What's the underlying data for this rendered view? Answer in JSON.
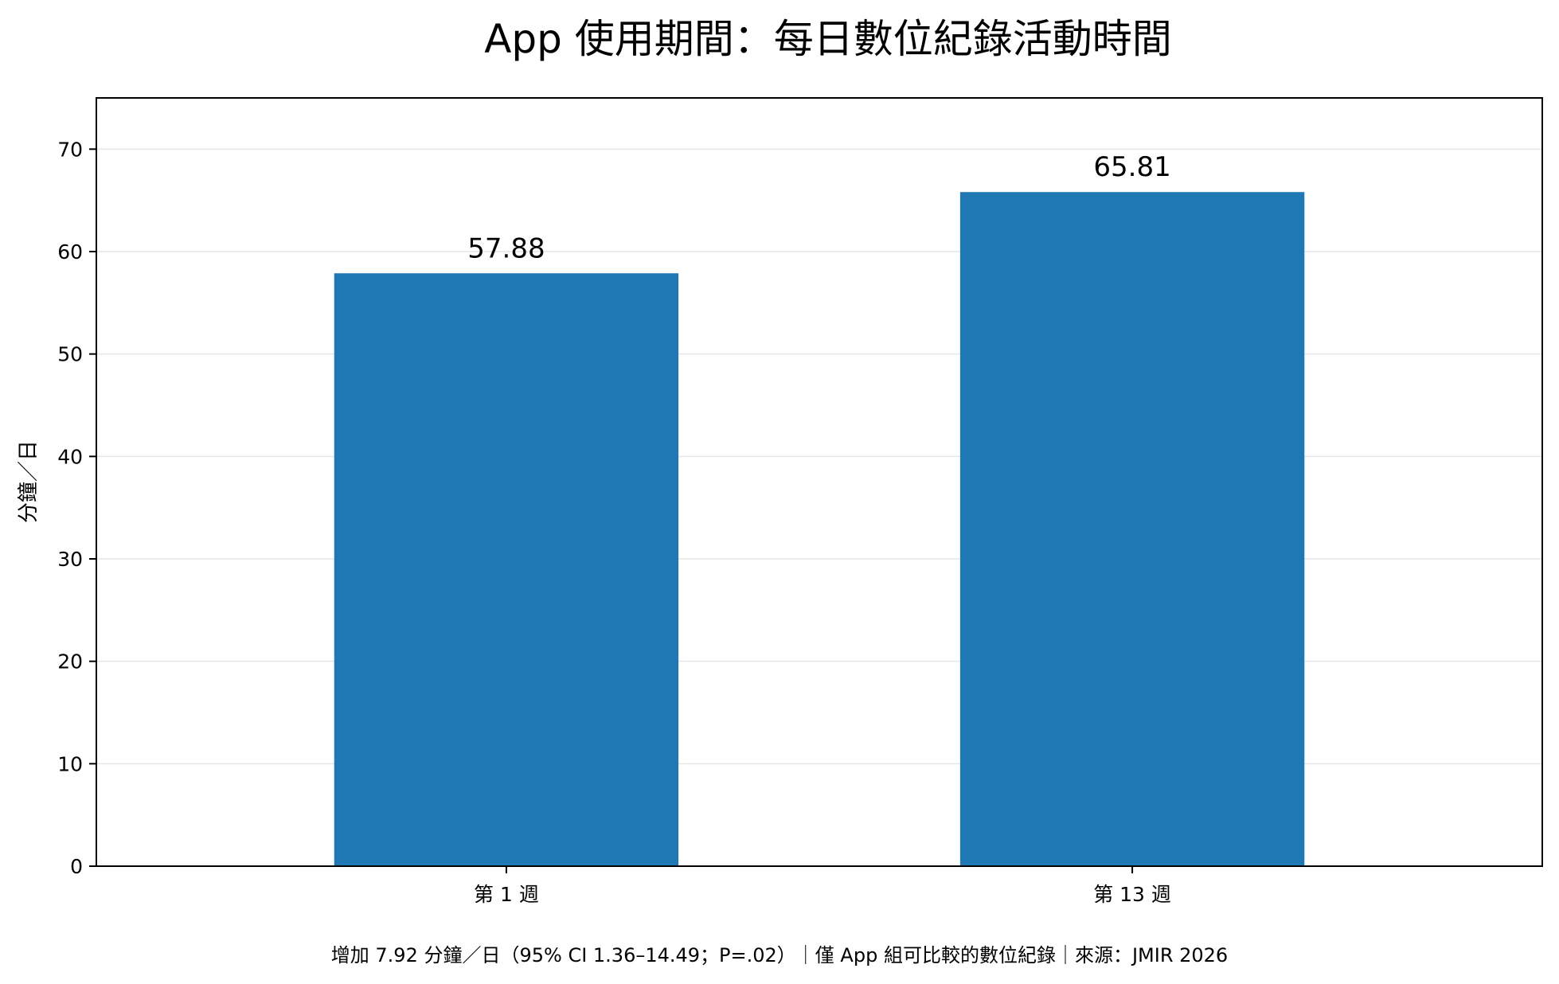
{
  "chart_data": {
    "type": "bar",
    "title": "App 使用期間：每日數位紀錄活動時間",
    "xlabel": "",
    "ylabel": "分鐘／日",
    "categories": [
      "第 1 週",
      "第 13 週"
    ],
    "values": [
      57.88,
      65.81
    ],
    "value_labels": [
      "57.88",
      "65.81"
    ],
    "ylim": [
      0,
      75
    ],
    "yticks": [
      0,
      10,
      20,
      30,
      40,
      50,
      60,
      70
    ],
    "grid": "horizontal",
    "bar_color": "#1f77b4",
    "footnote": "增加 7.92 分鐘／日（95% CI 1.36–14.49；P=.02）｜僅 App 組可比較的數位紀錄｜來源：JMIR 2026"
  }
}
